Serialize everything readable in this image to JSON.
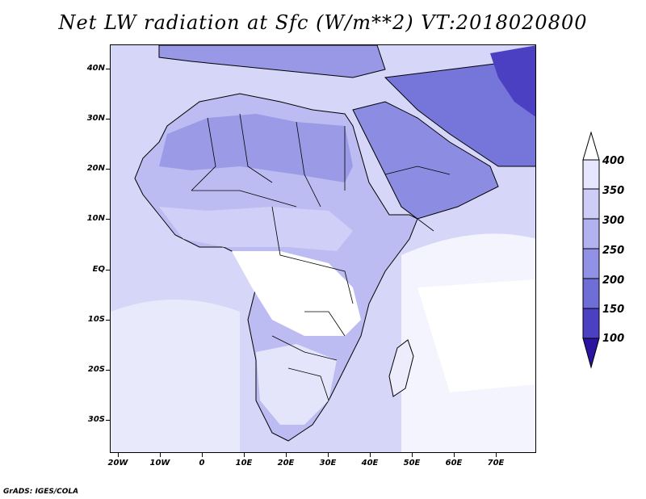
{
  "title": "Net LW radiation at Sfc (W/m**2) VT:2018020800",
  "credit": "GrADS: IGES/COLA",
  "map": {
    "lon_labels": [
      "20W",
      "10W",
      "0",
      "10E",
      "20E",
      "30E",
      "40E",
      "50E",
      "60E",
      "70E"
    ],
    "lat_labels": [
      "40N",
      "30N",
      "20N",
      "10N",
      "EQ",
      "10S",
      "20S",
      "30S"
    ]
  },
  "colorbar": {
    "labels": [
      "400",
      "350",
      "300",
      "250",
      "200",
      "150",
      "100"
    ],
    "colors": [
      "#e6e6ff",
      "#cdcdf8",
      "#b2b2f0",
      "#9191e6",
      "#6e6ed6",
      "#4b3fc2",
      "#2a14a0",
      "#1a0a80"
    ]
  },
  "shading": {
    "ocean": "#dcdcfa",
    "land_light": "#ffffff",
    "land_medium": "#b6b6f0",
    "land_dark": "#9494e4",
    "highland": "#6e6ed6"
  }
}
